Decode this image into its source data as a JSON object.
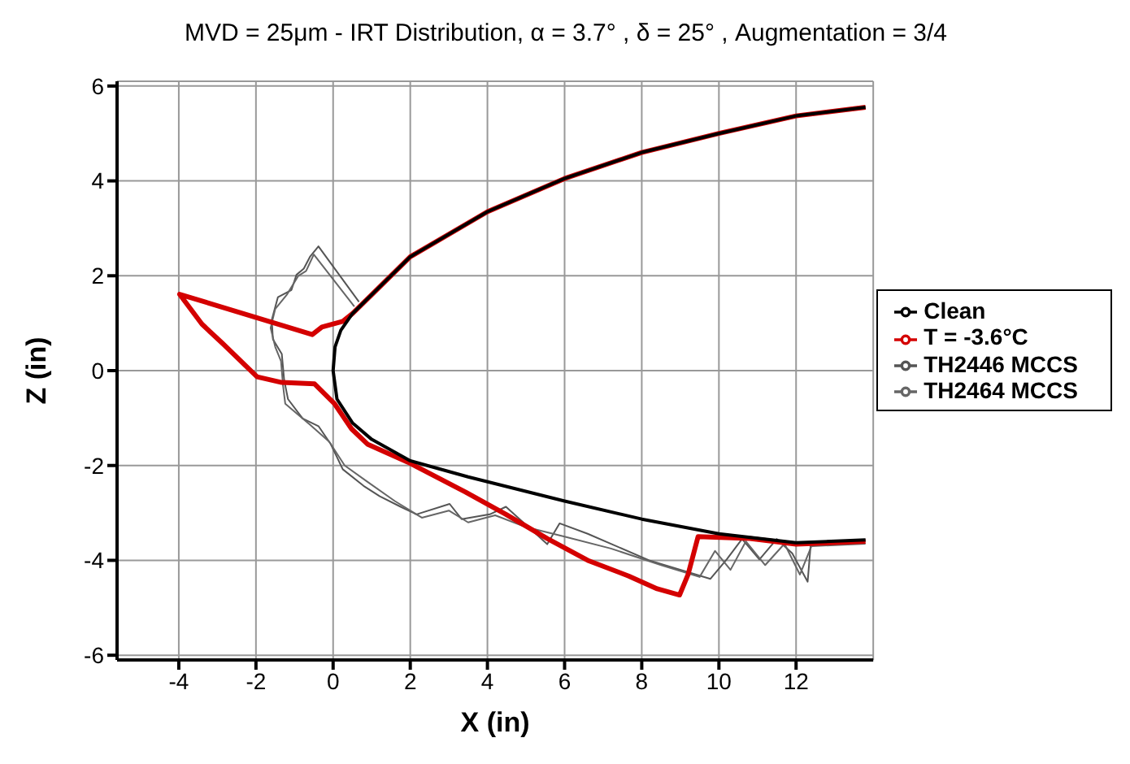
{
  "chart_data": {
    "type": "line",
    "title": "MVD = 25μm - IRT Distribution, α = 3.7° , δ = 25° , Augmentation = 3/4",
    "xlabel": "X (in)",
    "ylabel": "Z (in)",
    "xlim": [
      -5.6,
      14
    ],
    "ylim": [
      -6.1,
      6.1
    ],
    "xticks": [
      -4,
      -2,
      0,
      2,
      4,
      6,
      8,
      10,
      12
    ],
    "yticks": [
      -6,
      -4,
      -2,
      0,
      2,
      4,
      6
    ],
    "grid": true,
    "legend": "right",
    "marker": "none",
    "line_style": "solid",
    "series": [
      {
        "name": "TH2446 MCCS",
        "color": "#555555",
        "x": [
          0.67,
          -0.38,
          -0.6,
          -0.76,
          -0.95,
          -1.08,
          -1.43,
          -1.59,
          -1.56,
          -1.33,
          -1.27,
          -1.17,
          -0.79,
          -0.38,
          -0.06,
          0.25,
          0.79,
          1.21,
          1.75,
          2.16,
          3.02,
          3.33,
          4.06,
          4.48,
          5.55,
          5.87,
          6.6,
          8.19,
          9.78,
          10.2,
          10.6,
          11.05,
          11.5,
          11.9,
          12.3,
          12.38,
          13.8
        ],
        "values": [
          1.45,
          2.62,
          2.4,
          2.15,
          2.02,
          1.7,
          1.55,
          1.07,
          0.66,
          0.35,
          -0.19,
          -0.6,
          -1.01,
          -1.17,
          -1.55,
          -2.08,
          -2.43,
          -2.65,
          -2.87,
          -3.03,
          -2.81,
          -3.13,
          -3.03,
          -2.87,
          -3.66,
          -3.22,
          -3.44,
          -4.0,
          -4.39,
          -3.98,
          -3.55,
          -3.98,
          -3.55,
          -3.85,
          -4.45,
          -3.66,
          -3.6
        ]
      },
      {
        "name": "TH2464 MCCS",
        "color": "#666666",
        "x": [
          0.55,
          -0.5,
          -0.7,
          -0.9,
          -1.2,
          -1.5,
          -1.62,
          -1.5,
          -1.35,
          -1.3,
          -1.24,
          -0.6,
          -0.1,
          0.3,
          0.9,
          1.6,
          2.3,
          3.0,
          3.5,
          4.2,
          5.0,
          6.0,
          7.2,
          8.5,
          9.5,
          9.9,
          10.3,
          10.7,
          11.2,
          11.7,
          12.1,
          12.4,
          13.8
        ],
        "values": [
          1.35,
          2.45,
          2.1,
          2.0,
          1.6,
          1.3,
          0.9,
          0.5,
          0.2,
          -0.3,
          -0.7,
          -1.14,
          -1.5,
          -2.0,
          -2.35,
          -2.75,
          -3.1,
          -2.95,
          -3.2,
          -3.05,
          -3.3,
          -3.5,
          -3.75,
          -4.1,
          -4.35,
          -3.8,
          -4.2,
          -3.6,
          -4.1,
          -3.65,
          -4.3,
          -3.7,
          -3.65
        ]
      },
      {
        "name": "T = -3.6°C",
        "color": "#d40000",
        "x": [
          13.8,
          12,
          10,
          8,
          6,
          4,
          2,
          1,
          0.5,
          0.25,
          -0.29,
          -0.54,
          -3.98,
          -3.4,
          -2.86,
          -1.97,
          -1.33,
          -0.48,
          0.03,
          0.48,
          0.89,
          1.94,
          3.43,
          4.48,
          5.55,
          6.6,
          7.66,
          8.4,
          8.98,
          9.2,
          9.46,
          10.8,
          12,
          13.8
        ],
        "values": [
          5.55,
          5.37,
          5.0,
          4.6,
          4.05,
          3.35,
          2.4,
          1.6,
          1.2,
          1.04,
          0.92,
          0.76,
          1.61,
          0.98,
          0.57,
          -0.13,
          -0.25,
          -0.28,
          -0.69,
          -1.23,
          -1.55,
          -1.93,
          -2.56,
          -3.03,
          -3.54,
          -4.0,
          -4.33,
          -4.6,
          -4.73,
          -4.3,
          -3.5,
          -3.54,
          -3.66,
          -3.6
        ]
      },
      {
        "name": "Clean",
        "color": "#000000",
        "x": [
          13.8,
          12,
          10,
          8,
          6,
          4,
          2,
          1,
          0.5,
          0.2,
          0.05,
          0,
          0.1,
          0.5,
          1,
          2,
          3.5,
          6,
          8,
          10,
          12,
          13.8
        ],
        "values": [
          5.55,
          5.37,
          5.0,
          4.6,
          4.05,
          3.35,
          2.4,
          1.6,
          1.2,
          0.85,
          0.5,
          0,
          -0.6,
          -1.1,
          -1.45,
          -1.9,
          -2.24,
          -2.75,
          -3.13,
          -3.44,
          -3.63,
          -3.57
        ]
      }
    ]
  }
}
